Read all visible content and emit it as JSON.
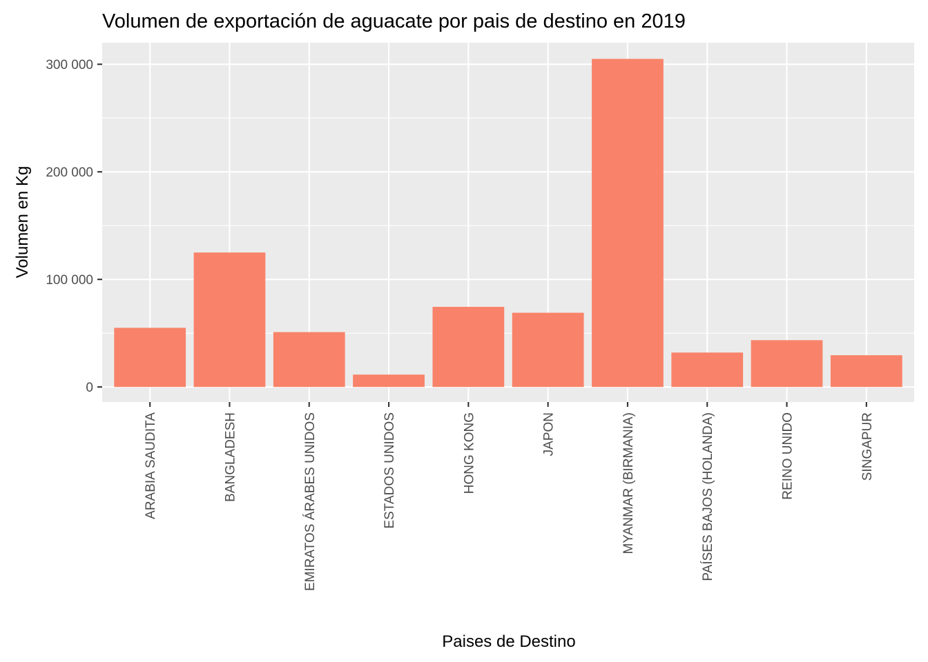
{
  "chart_data": {
    "type": "bar",
    "title": "Volumen de exportación de aguacate por pais de destino en 2019",
    "xlabel": "Paises de Destino",
    "ylabel": "Volumen en Kg",
    "categories": [
      "ARABIA SAUDITA",
      "BANGLADESH",
      "EMIRATOS ÁRABES UNIDOS",
      "ESTADOS UNIDOS",
      "HONG KONG",
      "JAPON",
      "MYANMAR (BIRMANIA)",
      "PAÍSES BAJOS (HOLANDA)",
      "REINO UNIDO",
      "SINGAPUR"
    ],
    "values": [
      55000,
      125000,
      51000,
      11500,
      74500,
      69000,
      305000,
      32000,
      43500,
      29500
    ],
    "ylim": [
      -14000,
      320000
    ],
    "yticks": [
      0,
      100000,
      200000,
      300000
    ],
    "ytick_labels": [
      "0",
      "100 000",
      "200 000",
      "300 000"
    ],
    "grid": true,
    "bar_color": "#F8836A",
    "panel_color": "#EBEBEB"
  }
}
